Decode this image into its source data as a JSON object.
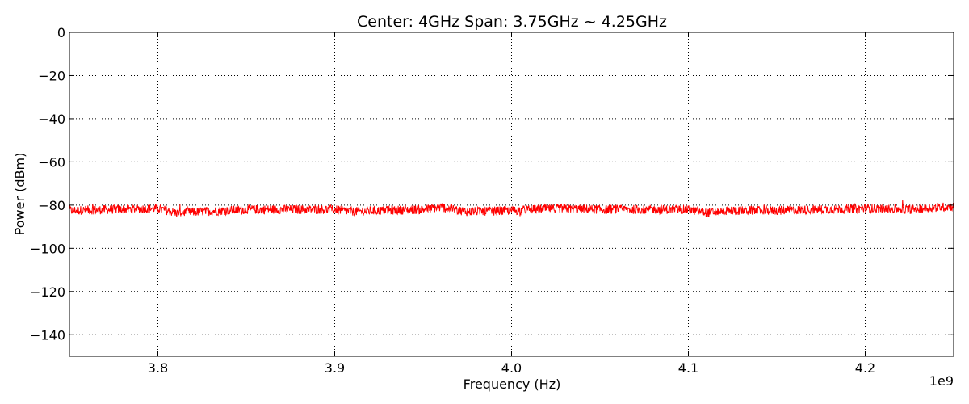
{
  "chart_data": {
    "type": "line",
    "title": "Center: 4GHz    Span: 3.75GHz ~ 4.25GHz",
    "xlabel": "Frequency (Hz)",
    "ylabel": "Power (dBm)",
    "x_offset_label": "1e9",
    "xlim": [
      3.75,
      4.25
    ],
    "ylim": [
      -150,
      0
    ],
    "x_ticks": [
      3.8,
      3.9,
      4.0,
      4.1,
      4.2
    ],
    "x_tick_labels": [
      "3.8",
      "3.9",
      "4.0",
      "4.1",
      "4.2"
    ],
    "y_ticks": [
      0,
      -20,
      -40,
      -60,
      -80,
      -100,
      -120,
      -140
    ],
    "y_tick_labels": [
      "0",
      "−20",
      "−40",
      "−60",
      "−80",
      "−100",
      "−120",
      "−140"
    ],
    "grid": true,
    "line_color": "#ff0000",
    "series": [
      {
        "x": [
          3.75,
          3.775,
          3.8,
          3.81,
          3.825,
          3.85,
          3.875,
          3.9,
          3.91,
          3.925,
          3.95,
          3.96,
          3.975,
          4.0,
          4.025,
          4.05,
          4.075,
          4.1,
          4.11,
          4.125,
          4.15,
          4.175,
          4.2,
          4.225,
          4.25
        ],
        "values": [
          -82.5,
          -82,
          -81.5,
          -83.5,
          -83,
          -82,
          -82,
          -82,
          -83,
          -82.5,
          -82,
          -81,
          -83,
          -82.5,
          -81.5,
          -82,
          -82,
          -82,
          -83.5,
          -82.5,
          -82.5,
          -82,
          -81.5,
          -82,
          -80.5
        ]
      }
    ]
  }
}
